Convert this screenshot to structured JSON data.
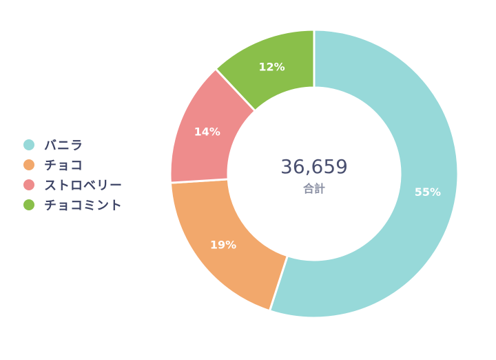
{
  "chart_data": {
    "type": "pie",
    "variant": "donut",
    "title": "",
    "categories": [
      "バニラ",
      "チョコ",
      "ストロベリー",
      "チョコミント"
    ],
    "values": [
      55,
      19,
      14,
      12
    ],
    "value_labels": [
      "55%",
      "19%",
      "14%",
      "12%"
    ],
    "colors": [
      "#97d9d9",
      "#f2a86c",
      "#ee8c8c",
      "#8abf4a"
    ],
    "center_value": "36,659",
    "center_label": "合計",
    "legend_position": "left"
  },
  "legend": {
    "items": [
      {
        "label": "バニラ",
        "color": "#97d9d9"
      },
      {
        "label": "チョコ",
        "color": "#f2a86c"
      },
      {
        "label": "ストロベリー",
        "color": "#ee8c8c"
      },
      {
        "label": "チョコミント",
        "color": "#8abf4a"
      }
    ]
  }
}
